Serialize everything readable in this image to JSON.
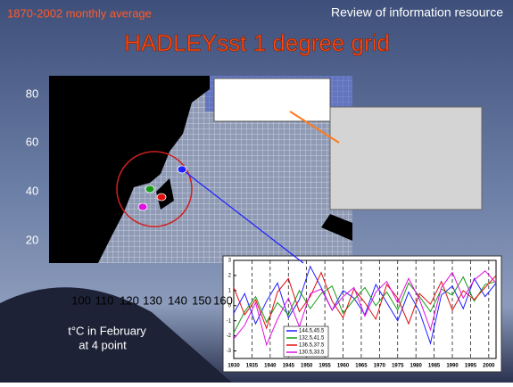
{
  "header": {
    "subtitle": "1870-2002 monthly average",
    "section": "Review of information resource",
    "title": "HADLEYsst 1 degree grid"
  },
  "map": {
    "xticks": [
      100,
      110,
      120,
      130,
      140,
      150,
      160
    ],
    "yticks": [
      80,
      60,
      40,
      20
    ]
  },
  "caption": {
    "line1": "t°C in February",
    "line2": "at 4 point"
  },
  "chart_data": {
    "type": "line",
    "x": [
      1930,
      1933,
      1936,
      1939,
      1942,
      1945,
      1948,
      1951,
      1954,
      1957,
      1960,
      1963,
      1966,
      1969,
      1972,
      1975,
      1978,
      1981,
      1984,
      1987,
      1990,
      1993,
      1996,
      1999,
      2002
    ],
    "series": [
      {
        "name": "144.5,45.5",
        "color": "#1f1fff",
        "values": [
          -0.5,
          0.8,
          -1.2,
          0.3,
          1.5,
          -0.8,
          0.4,
          2.6,
          1.2,
          -0.3,
          1.0,
          0.5,
          -0.6,
          1.4,
          0.2,
          -1.0,
          0.9,
          -0.4,
          -2.5,
          0.7,
          1.3,
          -0.2,
          1.8,
          0.6,
          1.5
        ]
      },
      {
        "name": "132.5,41.5",
        "color": "#1a9a1a",
        "values": [
          -1.8,
          -0.4,
          0.6,
          -1.1,
          0.2,
          -0.6,
          1.0,
          -0.2,
          0.8,
          1.3,
          -0.5,
          0.4,
          1.2,
          0.0,
          0.9,
          -0.3,
          1.5,
          0.6,
          -0.4,
          1.1,
          0.7,
          1.9,
          0.3,
          1.4,
          1.6
        ]
      },
      {
        "name": "136.5,37.5",
        "color": "#e01010",
        "values": [
          1.2,
          -0.6,
          0.4,
          -1.5,
          0.9,
          1.8,
          -0.4,
          0.6,
          2.2,
          0.3,
          -0.8,
          1.1,
          0.2,
          -0.9,
          1.4,
          0.5,
          -1.2,
          0.8,
          0.1,
          1.6,
          -0.3,
          1.0,
          0.4,
          1.2,
          2.0
        ]
      },
      {
        "name": "130.5,33.5",
        "color": "#e010e0",
        "values": [
          -2.2,
          -1.3,
          0.2,
          -2.6,
          -0.9,
          0.5,
          -1.4,
          0.8,
          1.1,
          -0.3,
          0.6,
          1.2,
          -0.7,
          0.9,
          1.6,
          0.2,
          1.8,
          0.4,
          -1.6,
          1.2,
          2.2,
          0.5,
          1.7,
          2.3,
          1.5
        ]
      }
    ],
    "xlim": [
      1930,
      2002
    ],
    "xticks": [
      1930,
      1935,
      1940,
      1945,
      1950,
      1955,
      1960,
      1965,
      1970,
      1975,
      1980,
      1985,
      1990,
      1995,
      2000
    ],
    "ylim": [
      -3.5,
      3
    ],
    "yticks": [
      -3,
      -2,
      -1,
      0,
      1,
      2,
      3
    ],
    "grid": true
  }
}
